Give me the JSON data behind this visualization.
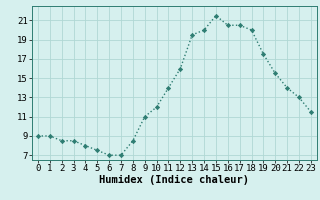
{
  "x": [
    0,
    1,
    2,
    3,
    4,
    5,
    6,
    7,
    8,
    9,
    10,
    11,
    12,
    13,
    14,
    15,
    16,
    17,
    18,
    19,
    20,
    21,
    22,
    23
  ],
  "y": [
    9,
    9,
    8.5,
    8.5,
    8,
    7.5,
    7,
    7,
    8.5,
    11,
    12,
    14,
    16,
    19.5,
    20,
    21.5,
    20.5,
    20.5,
    20,
    17.5,
    15.5,
    14,
    13,
    11.5
  ],
  "line_color": "#2e7d72",
  "marker": "D",
  "marker_size": 2.2,
  "bg_color": "#d6f0ee",
  "grid_color": "#b0d8d4",
  "xlabel": "Humidex (Indice chaleur)",
  "xlim": [
    -0.5,
    23.5
  ],
  "ylim": [
    6.5,
    22.5
  ],
  "yticks": [
    7,
    9,
    11,
    13,
    15,
    17,
    19,
    21
  ],
  "xticks": [
    0,
    1,
    2,
    3,
    4,
    5,
    6,
    7,
    8,
    9,
    10,
    11,
    12,
    13,
    14,
    15,
    16,
    17,
    18,
    19,
    20,
    21,
    22,
    23
  ],
  "tick_fontsize": 6.5,
  "xlabel_fontsize": 7.5,
  "spine_color": "#2e7d72",
  "linewidth": 1.0
}
